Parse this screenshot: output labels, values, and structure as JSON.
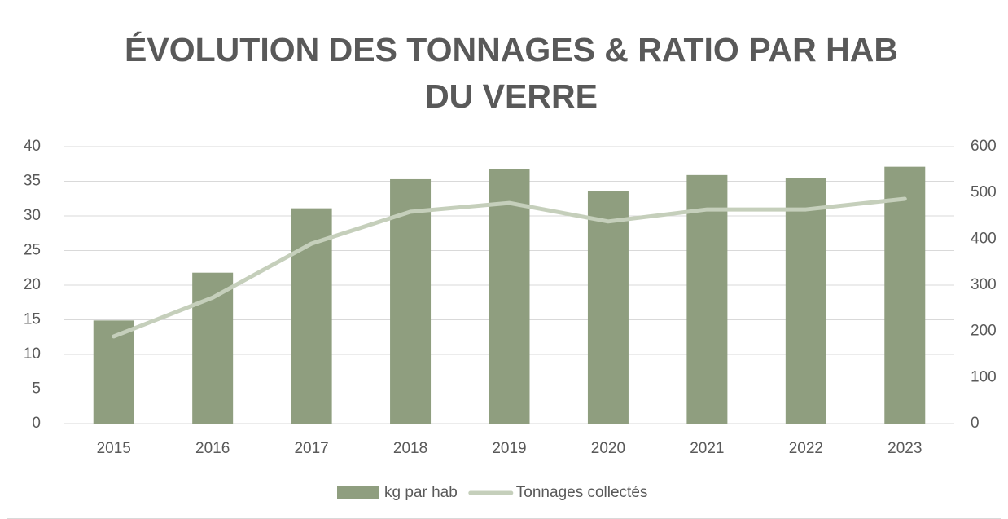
{
  "chart_data": {
    "type": "bar_line",
    "title": [
      "ÉVOLUTION DES TONNAGES & RATIO PAR HAB",
      "DU VERRE"
    ],
    "categories": [
      "2015",
      "2016",
      "2017",
      "2018",
      "2019",
      "2020",
      "2021",
      "2022",
      "2023"
    ],
    "series": [
      {
        "name": "kg par hab",
        "type": "bar",
        "color": "#8f9e7f",
        "values": [
          14.9,
          21.8,
          31.1,
          35.3,
          36.8,
          33.6,
          35.9,
          35.5,
          37.1
        ]
      },
      {
        "name": "Tonnages collectés",
        "type": "line",
        "axis": "y2",
        "color": "#c5cfbb",
        "values": [
          189,
          273,
          390,
          459,
          478,
          438,
          464,
          464,
          487
        ]
      }
    ],
    "ylim": [
      0,
      40
    ],
    "yticks": [
      0,
      5,
      10,
      15,
      20,
      25,
      30,
      35,
      40
    ],
    "y2lim": [
      0,
      600
    ],
    "y2ticks": [
      0,
      100,
      200,
      300,
      400,
      500,
      600
    ],
    "grid": true,
    "legend": "bottom"
  }
}
